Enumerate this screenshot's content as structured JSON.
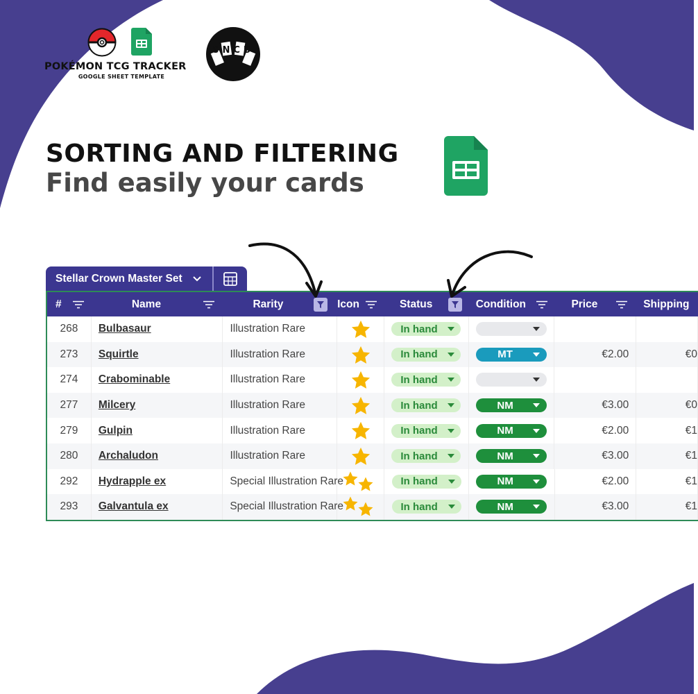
{
  "brand": {
    "title": "POKÉMON TCG TRACKER",
    "subtitle": "GOOGLE SHEET TEMPLATE",
    "badge_text": "SNCB"
  },
  "headline": {
    "title": "SORTING AND FILTERING",
    "subtitle": "Find easily your cards"
  },
  "colors": {
    "brand_purple": "#473f8f",
    "header_purple": "#3b3690",
    "status_bg": "#d3f0c9",
    "status_text": "#2a8a3a",
    "nm": "#1e8f3c",
    "mt": "#1a9bbd",
    "empty": "#e8e9ec",
    "star": "#f7b500"
  },
  "tab": {
    "label": "Stellar Crown Master Set",
    "chevron_icon": "chevron-down-icon",
    "calc_icon": "calculator-icon"
  },
  "table": {
    "headers": {
      "num": "#",
      "name": "Name",
      "rarity": "Rarity",
      "icon": "Icon",
      "status": "Status",
      "condition": "Condition",
      "price": "Price",
      "shipping": "Shipping"
    },
    "rows": [
      {
        "num": "268",
        "name": "Bulbasaur",
        "rarity": "Illustration Rare",
        "stars": 1,
        "status": "In hand",
        "condition": "",
        "price": "",
        "shipping": ""
      },
      {
        "num": "273",
        "name": "Squirtle",
        "rarity": "Illustration Rare",
        "stars": 1,
        "status": "In hand",
        "condition": "MT",
        "price": "€2.00",
        "shipping": "€0"
      },
      {
        "num": "274",
        "name": "Crabominable",
        "rarity": "Illustration Rare",
        "stars": 1,
        "status": "In hand",
        "condition": "",
        "price": "",
        "shipping": ""
      },
      {
        "num": "277",
        "name": "Milcery",
        "rarity": "Illustration Rare",
        "stars": 1,
        "status": "In hand",
        "condition": "NM",
        "price": "€3.00",
        "shipping": "€0"
      },
      {
        "num": "279",
        "name": "Gulpin",
        "rarity": "Illustration Rare",
        "stars": 1,
        "status": "In hand",
        "condition": "NM",
        "price": "€2.00",
        "shipping": "€1"
      },
      {
        "num": "280",
        "name": "Archaludon",
        "rarity": "Illustration Rare",
        "stars": 1,
        "status": "In hand",
        "condition": "NM",
        "price": "€3.00",
        "shipping": "€1"
      },
      {
        "num": "292",
        "name": "Hydrapple ex",
        "rarity": "Special Illustration Rare",
        "stars": 2,
        "status": "In hand",
        "condition": "NM",
        "price": "€2.00",
        "shipping": "€1"
      },
      {
        "num": "293",
        "name": "Galvantula ex",
        "rarity": "Special Illustration Rare",
        "stars": 2,
        "status": "In hand",
        "condition": "NM",
        "price": "€3.00",
        "shipping": "€1"
      }
    ]
  }
}
